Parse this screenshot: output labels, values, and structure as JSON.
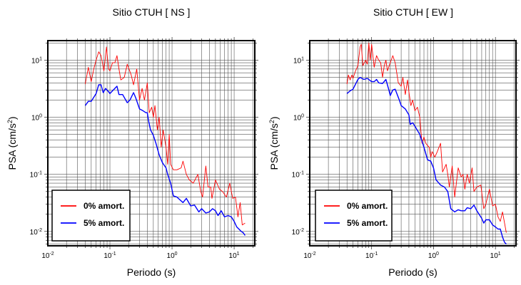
{
  "chart_data": [
    {
      "type": "line",
      "title": "Sitio CTUH [ NS ]",
      "xlabel": "Periodo (s)",
      "ylabel_main": "PSA (cm/s",
      "ylabel_sup": "2",
      "ylabel_end": ")",
      "xscale": "log",
      "yscale": "log",
      "xlim": [
        0.01,
        21.5
      ],
      "ylim": [
        0.0056,
        22
      ],
      "grid": true,
      "legend_placement": "bottom-left",
      "xticks": [
        {
          "v": 0.01,
          "base": "10",
          "exp": "-2"
        },
        {
          "v": 0.1,
          "base": "10",
          "exp": "-1"
        },
        {
          "v": 1,
          "base": "10",
          "exp": "0"
        },
        {
          "v": 10,
          "base": "10",
          "exp": "1"
        }
      ],
      "yticks": [
        {
          "v": 0.01,
          "base": "10",
          "exp": "-2"
        },
        {
          "v": 0.1,
          "base": "10",
          "exp": "-1"
        },
        {
          "v": 1,
          "base": "10",
          "exp": "0"
        },
        {
          "v": 10,
          "base": "10",
          "exp": "1"
        }
      ],
      "series": [
        {
          "name": "0% amort.",
          "color": "#ff0000",
          "x": [
            0.04,
            0.045,
            0.05,
            0.055,
            0.06,
            0.066,
            0.072,
            0.08,
            0.088,
            0.095,
            0.1,
            0.11,
            0.12,
            0.13,
            0.14,
            0.15,
            0.17,
            0.19,
            0.22,
            0.24,
            0.27,
            0.3,
            0.33,
            0.36,
            0.4,
            0.43,
            0.47,
            0.5,
            0.53,
            0.58,
            0.62,
            0.67,
            0.72,
            0.8,
            0.85,
            0.9,
            0.95,
            1.05,
            1.2,
            1.4,
            1.5,
            1.7,
            1.9,
            2.2,
            2.6,
            2.9,
            3.1,
            3.5,
            3.8,
            4.2,
            4.4,
            5,
            5.8,
            6.5,
            7.5,
            8.5,
            9.5,
            10.5,
            11.5,
            12.5,
            13.5,
            15
          ],
          "y": [
            3.8,
            7.5,
            4.2,
            7,
            10,
            14,
            12,
            6.5,
            17,
            7,
            6.5,
            9,
            9,
            12,
            7,
            4.5,
            5,
            8.5,
            5.5,
            3.7,
            7,
            2,
            3.2,
            2,
            4,
            1.2,
            1.5,
            1,
            1.6,
            0.6,
            1,
            0.3,
            0.6,
            0.3,
            0.15,
            0.5,
            0.15,
            0.12,
            0.12,
            0.13,
            0.17,
            0.1,
            0.08,
            0.07,
            0.1,
            0.05,
            0.04,
            0.14,
            0.06,
            0.06,
            0.038,
            0.08,
            0.055,
            0.05,
            0.04,
            0.07,
            0.038,
            0.04,
            0.018,
            0.032,
            0.013,
            0.014
          ]
        },
        {
          "name": "5% amort.",
          "color": "#0000ff",
          "x": [
            0.04,
            0.045,
            0.05,
            0.06,
            0.066,
            0.072,
            0.078,
            0.085,
            0.095,
            0.1,
            0.11,
            0.13,
            0.14,
            0.16,
            0.19,
            0.21,
            0.24,
            0.26,
            0.3,
            0.34,
            0.38,
            0.4,
            0.42,
            0.45,
            0.5,
            0.55,
            0.62,
            0.7,
            0.8,
            0.85,
            0.95,
            1.05,
            1.2,
            1.5,
            1.7,
            2,
            2.3,
            2.7,
            3,
            3.5,
            4,
            4.5,
            5,
            5.5,
            6.2,
            7,
            8,
            9,
            10,
            11,
            13,
            14,
            15
          ],
          "y": [
            1.6,
            1.9,
            1.9,
            2.6,
            3.7,
            3.7,
            2.7,
            3.2,
            2.8,
            2.6,
            2.9,
            3.5,
            2.5,
            2.5,
            1.8,
            2,
            2.7,
            2.2,
            1.4,
            1.3,
            1.2,
            1.2,
            0.85,
            0.6,
            0.48,
            0.35,
            0.22,
            0.16,
            0.13,
            0.1,
            0.07,
            0.042,
            0.04,
            0.032,
            0.038,
            0.028,
            0.029,
            0.022,
            0.025,
            0.021,
            0.022,
            0.025,
            0.023,
            0.019,
            0.023,
            0.018,
            0.019,
            0.018,
            0.015,
            0.012,
            0.01,
            0.0095,
            0.0085
          ]
        }
      ]
    },
    {
      "type": "line",
      "title": "Sitio CTUH [ EW ]",
      "xlabel": "Periodo (s)",
      "ylabel_main": "PSA (cm/s",
      "ylabel_sup": "2",
      "ylabel_end": ")",
      "xscale": "log",
      "yscale": "log",
      "xlim": [
        0.01,
        21.5
      ],
      "ylim": [
        0.0056,
        22
      ],
      "grid": true,
      "legend_placement": "bottom-left",
      "xticks": [
        {
          "v": 0.01,
          "base": "10",
          "exp": "-2"
        },
        {
          "v": 0.1,
          "base": "10",
          "exp": "-1"
        },
        {
          "v": 1,
          "base": "10",
          "exp": "0"
        },
        {
          "v": 10,
          "base": "10",
          "exp": "1"
        }
      ],
      "yticks": [
        {
          "v": 0.01,
          "base": "10",
          "exp": "-2"
        },
        {
          "v": 0.1,
          "base": "10",
          "exp": "-1"
        },
        {
          "v": 1,
          "base": "10",
          "exp": "0"
        },
        {
          "v": 10,
          "base": "10",
          "exp": "1"
        }
      ],
      "series": [
        {
          "name": "0% amort.",
          "color": "#ff0000",
          "x": [
            0.04,
            0.042,
            0.045,
            0.048,
            0.05,
            0.055,
            0.06,
            0.065,
            0.068,
            0.072,
            0.08,
            0.085,
            0.09,
            0.095,
            0.1,
            0.11,
            0.12,
            0.13,
            0.14,
            0.15,
            0.16,
            0.17,
            0.18,
            0.2,
            0.22,
            0.24,
            0.27,
            0.3,
            0.32,
            0.35,
            0.38,
            0.4,
            0.43,
            0.46,
            0.5,
            0.55,
            0.6,
            0.65,
            0.7,
            0.75,
            0.8,
            0.85,
            0.9,
            0.95,
            1.05,
            1.15,
            1.3,
            1.4,
            1.6,
            1.7,
            1.8,
            2,
            2.2,
            2.5,
            2.8,
            3,
            3.2,
            3.5,
            3.8,
            4.2,
            4.5,
            5,
            5.8,
            6.5,
            7,
            8,
            9,
            10,
            11,
            12,
            13,
            15
          ],
          "y": [
            3.8,
            5.5,
            4.5,
            5.5,
            4.8,
            6.5,
            8,
            17,
            19,
            8,
            10,
            8.5,
            20,
            10,
            19,
            7.5,
            12,
            10,
            9,
            5,
            8,
            10,
            6.5,
            9,
            12,
            9,
            4,
            3.5,
            5,
            2.5,
            4.5,
            2.8,
            1.6,
            2,
            1.3,
            1.5,
            1,
            0.35,
            0.45,
            0.35,
            0.32,
            0.3,
            0.2,
            0.25,
            0.2,
            0.25,
            0.35,
            0.11,
            0.15,
            0.1,
            0.06,
            0.14,
            0.04,
            0.13,
            0.09,
            0.1,
            0.055,
            0.1,
            0.07,
            0.13,
            0.05,
            0.06,
            0.065,
            0.025,
            0.03,
            0.055,
            0.028,
            0.03,
            0.018,
            0.015,
            0.022,
            0.0095
          ]
        },
        {
          "name": "5% amort.",
          "color": "#0000ff",
          "x": [
            0.04,
            0.045,
            0.05,
            0.06,
            0.065,
            0.075,
            0.085,
            0.1,
            0.11,
            0.12,
            0.13,
            0.15,
            0.17,
            0.19,
            0.2,
            0.22,
            0.24,
            0.28,
            0.3,
            0.35,
            0.4,
            0.42,
            0.46,
            0.5,
            0.6,
            0.7,
            0.8,
            0.9,
            1,
            1.1,
            1.3,
            1.5,
            1.7,
            1.9,
            2.2,
            2.5,
            2.8,
            3.2,
            3.5,
            4,
            4.5,
            5,
            6,
            6.5,
            7,
            8,
            9,
            10,
            11,
            12,
            13,
            14,
            15
          ],
          "y": [
            2.6,
            2.9,
            3.1,
            4.6,
            5,
            4.6,
            4.8,
            4.2,
            4.2,
            4.6,
            4,
            3.9,
            4.6,
            3,
            2.4,
            3,
            3.1,
            2,
            1.6,
            1.4,
            1.1,
            0.75,
            0.8,
            0.7,
            0.5,
            0.3,
            0.18,
            0.17,
            0.13,
            0.08,
            0.065,
            0.06,
            0.05,
            0.025,
            0.022,
            0.024,
            0.023,
            0.023,
            0.026,
            0.025,
            0.029,
            0.023,
            0.017,
            0.014,
            0.016,
            0.016,
            0.013,
            0.012,
            0.011,
            0.011,
            0.008,
            0.0065,
            0.006
          ]
        }
      ]
    }
  ]
}
